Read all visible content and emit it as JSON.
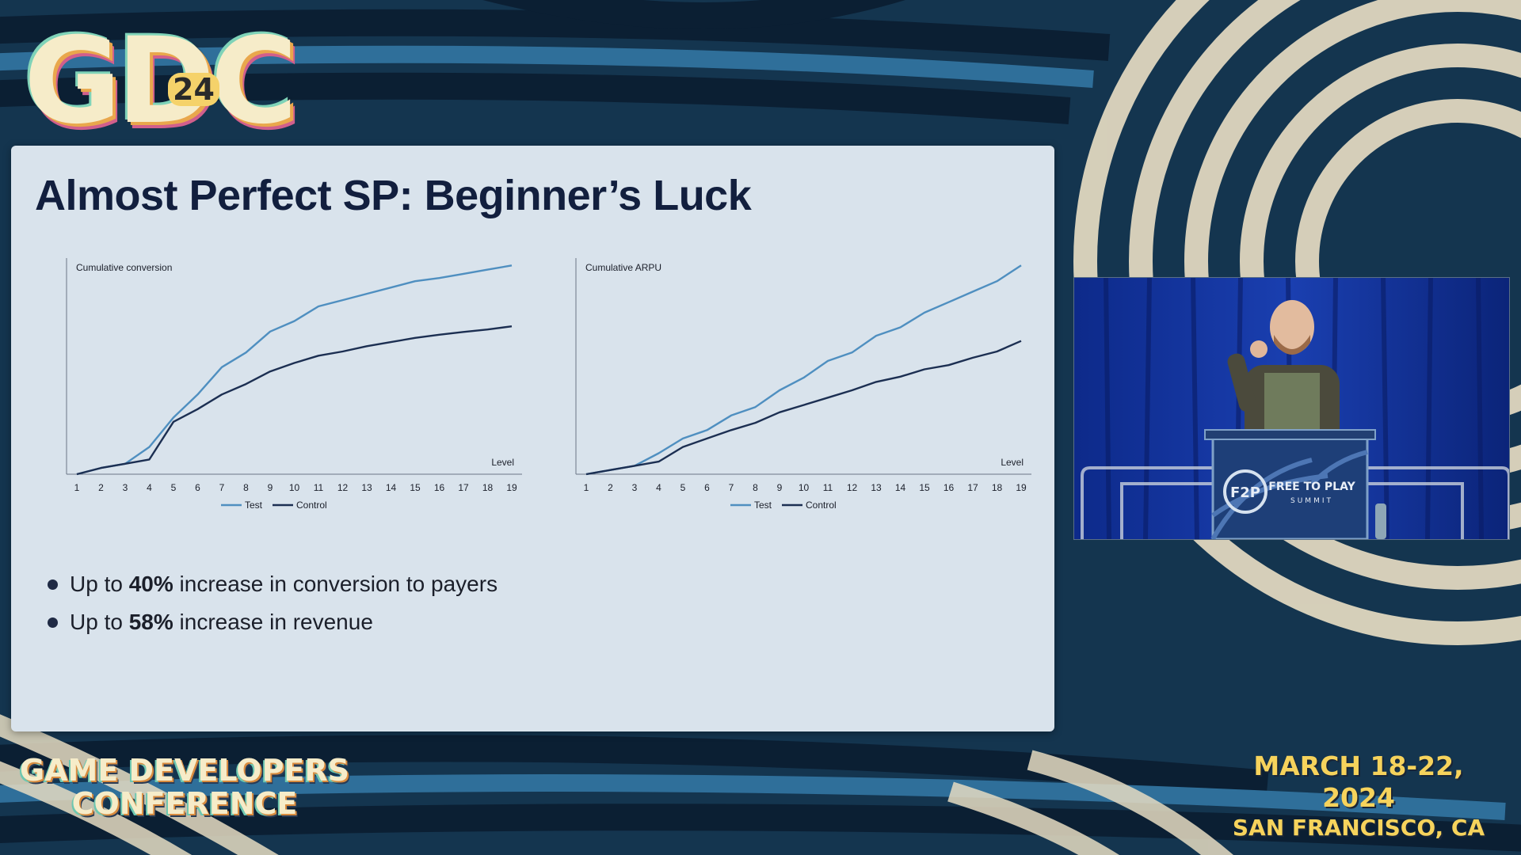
{
  "event": {
    "logo_text": "GDC",
    "logo_year": "24",
    "wordmark_line1": "GAME DEVELOPERS",
    "wordmark_line2": "CONFERENCE",
    "dates": "MARCH 18-22, 2024",
    "location": "SAN FRANCISCO, CA"
  },
  "slide": {
    "title": "Almost Perfect SP: Beginner’s Luck",
    "bullets": [
      {
        "prefix": "Up to ",
        "highlight": "40%",
        "suffix": " increase in conversion to payers"
      },
      {
        "prefix": "Up to ",
        "highlight": "58%",
        "suffix": " increase in revenue"
      }
    ]
  },
  "video": {
    "podium_title": "FREE TO PLAY",
    "podium_subtitle": "SUMMIT",
    "podium_logo": "F2P"
  },
  "colors": {
    "test": "#4f8fc0",
    "control": "#1c2f52",
    "axis": "#6a7686",
    "title": "#121f3e"
  },
  "chart_data": [
    {
      "type": "line",
      "title": "Cumulative conversion",
      "xlabel": "Level",
      "ylabel": "",
      "categories": [
        "1",
        "2",
        "3",
        "4",
        "5",
        "6",
        "7",
        "8",
        "9",
        "10",
        "11",
        "12",
        "13",
        "14",
        "15",
        "16",
        "17",
        "18",
        "19"
      ],
      "ylim": [
        0,
        100
      ],
      "legend_position": "bottom",
      "grid": false,
      "series": [
        {
          "name": "Test",
          "values": [
            0,
            3,
            5,
            13,
            27,
            38,
            51,
            58,
            68,
            73,
            80,
            83,
            86,
            89,
            92,
            93.5,
            95.5,
            97.5,
            99.5
          ]
        },
        {
          "name": "Control",
          "values": [
            0,
            3,
            5,
            7,
            25,
            31,
            38,
            43,
            49,
            53,
            56.5,
            58.5,
            61,
            63,
            65,
            66.5,
            67.8,
            69,
            70.5
          ]
        }
      ]
    },
    {
      "type": "line",
      "title": "Cumulative ARPU",
      "xlabel": "Level",
      "ylabel": "",
      "categories": [
        "1",
        "2",
        "3",
        "4",
        "5",
        "6",
        "7",
        "8",
        "9",
        "10",
        "11",
        "12",
        "13",
        "14",
        "15",
        "16",
        "17",
        "18",
        "19"
      ],
      "ylim": [
        0,
        100
      ],
      "legend_position": "bottom",
      "grid": false,
      "series": [
        {
          "name": "Test",
          "values": [
            0,
            2,
            4,
            10,
            17,
            21,
            28,
            32,
            40,
            46,
            54,
            58,
            66,
            70,
            77,
            82,
            87,
            92,
            99.5
          ]
        },
        {
          "name": "Control",
          "values": [
            0,
            2,
            4,
            6,
            13,
            17,
            21,
            24.5,
            29.5,
            33,
            36.5,
            40,
            44,
            46.5,
            50,
            52,
            55.5,
            58.5,
            63.5
          ]
        }
      ]
    }
  ]
}
